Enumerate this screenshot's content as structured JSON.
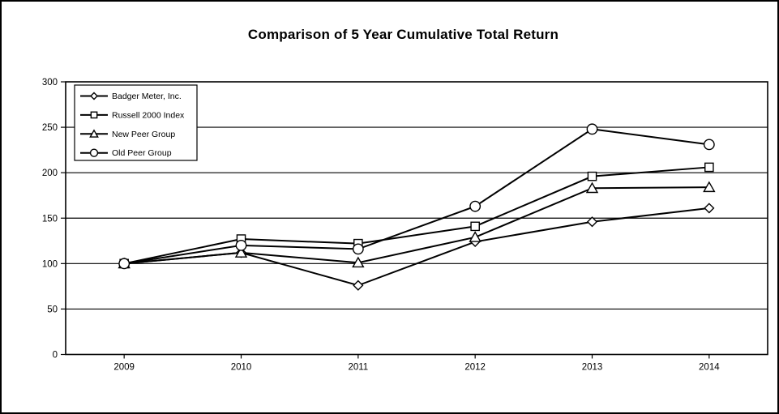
{
  "window": {
    "background_color": "#ffffff",
    "border_color": "#000000"
  },
  "chart_data": {
    "type": "line",
    "title": "Comparison of 5 Year Cumulative Total Return",
    "xlabel": "",
    "ylabel": "",
    "x": [
      "2009",
      "2010",
      "2011",
      "2012",
      "2013",
      "2014"
    ],
    "series": [
      {
        "name": "Badger Meter, Inc.",
        "marker": "diamond",
        "values": [
          100,
          112,
          76,
          124,
          146,
          161
        ]
      },
      {
        "name": "Russell 2000 Index",
        "marker": "square",
        "values": [
          100,
          127,
          122,
          141,
          196,
          206
        ]
      },
      {
        "name": "New Peer Group",
        "marker": "triangle",
        "values": [
          100,
          112,
          101,
          129,
          183,
          184
        ]
      },
      {
        "name": "Old Peer Group",
        "marker": "circle",
        "values": [
          100,
          120,
          116,
          163,
          248,
          231
        ]
      }
    ],
    "ylim": [
      0,
      300
    ],
    "yticks": [
      0,
      50,
      100,
      150,
      200,
      250,
      300
    ],
    "grid": true,
    "legend_position": "top-left",
    "line_color": "#000000",
    "marker_fill": "#ffffff",
    "axis_color": "#000000"
  }
}
